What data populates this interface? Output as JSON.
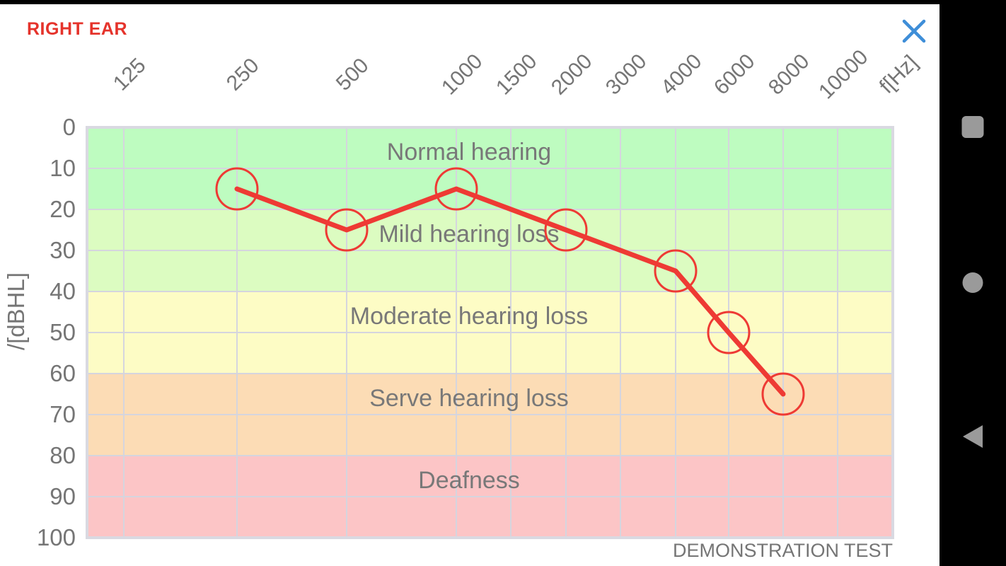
{
  "header": {
    "title": "RIGHT EAR",
    "close_icon": "close-x"
  },
  "chart_data": {
    "type": "line",
    "title": "",
    "x_axis": {
      "unit_label": "f[Hz]",
      "ticks": [
        125,
        250,
        500,
        1000,
        1500,
        2000,
        3000,
        4000,
        6000,
        8000,
        10000
      ],
      "scale": "log-audiometric"
    },
    "y_axis": {
      "label": "/[dBHL]",
      "ticks": [
        0,
        10,
        20,
        30,
        40,
        50,
        60,
        70,
        80,
        90,
        100
      ],
      "range": [
        0,
        100
      ],
      "direction": "down"
    },
    "zones": [
      {
        "from": 0,
        "to": 20,
        "label": "Normal hearing",
        "color": "#befcc0"
      },
      {
        "from": 20,
        "to": 40,
        "label": "Mild hearing loss",
        "color": "#dcfcc1"
      },
      {
        "from": 40,
        "to": 60,
        "label": "Moderate hearing loss",
        "color": "#fdfcc5"
      },
      {
        "from": 60,
        "to": 80,
        "label": "Serve hearing loss",
        "color": "#fcdcb5"
      },
      {
        "from": 80,
        "to": 100,
        "label": "Deafness",
        "color": "#fcc5c6"
      }
    ],
    "series": [
      {
        "name": "right-ear-thresholds",
        "color": "#ee3a34",
        "marker": "circle",
        "points": [
          {
            "freq": 250,
            "db": 15
          },
          {
            "freq": 500,
            "db": 25
          },
          {
            "freq": 1000,
            "db": 15
          },
          {
            "freq": 2000,
            "db": 25
          },
          {
            "freq": 4000,
            "db": 35
          },
          {
            "freq": 6000,
            "db": 50
          },
          {
            "freq": 8000,
            "db": 65
          }
        ]
      }
    ],
    "footnote": "DEMONSTRATION TEST",
    "grid": true,
    "grid_color": "#d5d5de",
    "text_color": "#757575"
  },
  "colors": {
    "accent_red": "#e5332b",
    "line_red": "#ee3a34",
    "close_blue": "#3e8ed8",
    "nav_gray": "#9a9a9a",
    "nav_bg": "#000000"
  },
  "nav_bar": {
    "icons": [
      {
        "name": "recents-square-icon"
      },
      {
        "name": "home-circle-icon"
      },
      {
        "name": "back-triangle-icon"
      }
    ]
  }
}
